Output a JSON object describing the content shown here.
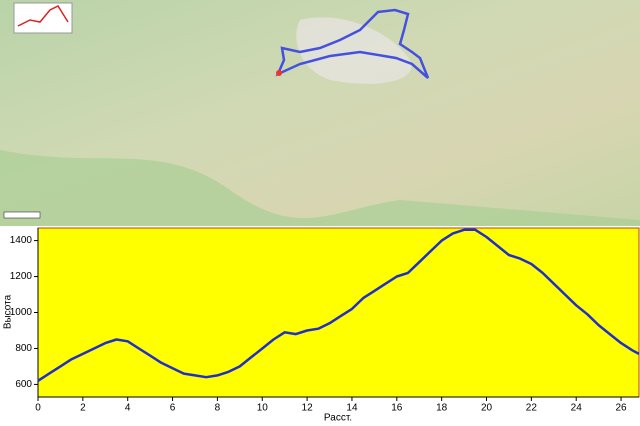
{
  "chart_data": {
    "type": "line",
    "x_label": "Расст.",
    "y_label": "Высота",
    "x": [
      0,
      0.5,
      1,
      1.5,
      2,
      2.5,
      3,
      3.5,
      4,
      4.5,
      5,
      5.5,
      6,
      6.5,
      7,
      7.5,
      8,
      8.5,
      9,
      9.5,
      10,
      10.5,
      11,
      11.5,
      12,
      12.5,
      13,
      13.5,
      14,
      14.5,
      15,
      15.5,
      16,
      16.5,
      17,
      17.5,
      18,
      18.5,
      19,
      19.5,
      20,
      20.5,
      21,
      21.5,
      22,
      22.5,
      23,
      23.5,
      24,
      24.5,
      25,
      25.5,
      26,
      26.5,
      26.8
    ],
    "series": [
      {
        "color": "#1f2fc8",
        "values": [
          620,
          660,
          700,
          740,
          770,
          800,
          830,
          850,
          840,
          800,
          760,
          720,
          690,
          660,
          650,
          640,
          650,
          670,
          700,
          750,
          800,
          850,
          890,
          880,
          900,
          910,
          940,
          980,
          1020,
          1080,
          1120,
          1160,
          1200,
          1220,
          1280,
          1340,
          1400,
          1440,
          1460,
          1460,
          1420,
          1370,
          1320,
          1300,
          1270,
          1220,
          1160,
          1100,
          1040,
          990,
          930,
          880,
          830,
          790,
          770
        ]
      }
    ],
    "xlim": [
      0,
      26.8
    ],
    "xticks": [
      0,
      2,
      4,
      6,
      8,
      10,
      12,
      14,
      16,
      18,
      20,
      22,
      24,
      26
    ],
    "ylim": [
      530,
      1470
    ],
    "yticks": [
      600,
      800,
      1000,
      1200,
      1400
    ],
    "grid": false,
    "background": "#ffff00"
  }
}
